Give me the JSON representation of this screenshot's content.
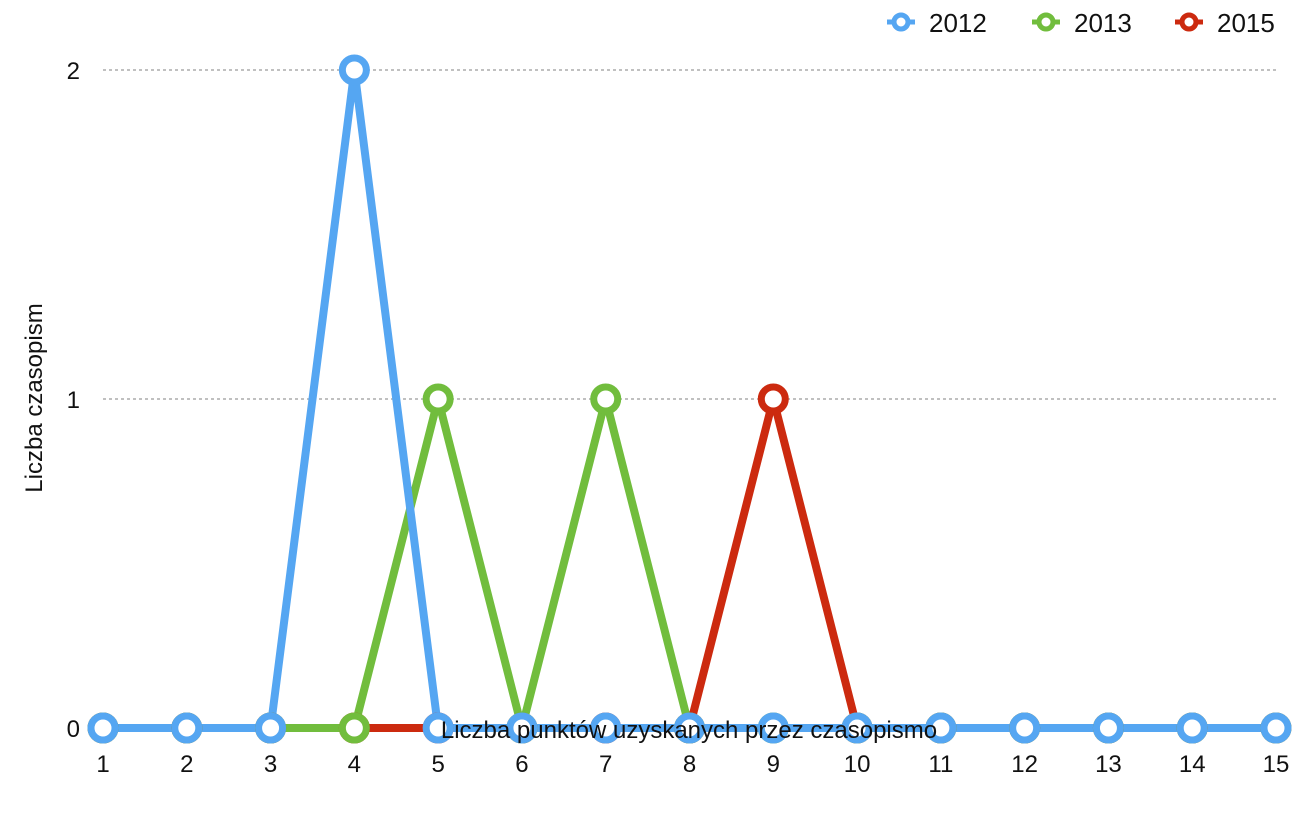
{
  "chart_data": {
    "type": "line",
    "xlabel": "Liczba punktów uzyskanych przez czasopismo",
    "ylabel": "Liczba czasopism",
    "x": [
      1,
      2,
      3,
      4,
      5,
      6,
      7,
      8,
      9,
      10,
      11,
      12,
      13,
      14,
      15
    ],
    "xlim": [
      1,
      15
    ],
    "ylim": [
      0,
      2
    ],
    "yticks": [
      0,
      1,
      2
    ],
    "grid": true,
    "legend_position": "top-right",
    "series": [
      {
        "name": "2012",
        "color": "#55a6f2",
        "values": [
          0,
          0,
          0,
          2,
          0,
          0,
          0,
          0,
          0,
          0,
          0,
          0,
          0,
          0,
          0
        ]
      },
      {
        "name": "2013",
        "color": "#71bd3d",
        "values": [
          0,
          0,
          0,
          0,
          1,
          0,
          1,
          0,
          0,
          0,
          0,
          0,
          0,
          0,
          0
        ]
      },
      {
        "name": "2015",
        "color": "#cc2a0f",
        "values": [
          0,
          0,
          0,
          0,
          0,
          0,
          0,
          0,
          1,
          0,
          0,
          0,
          0,
          0,
          0
        ]
      }
    ]
  }
}
